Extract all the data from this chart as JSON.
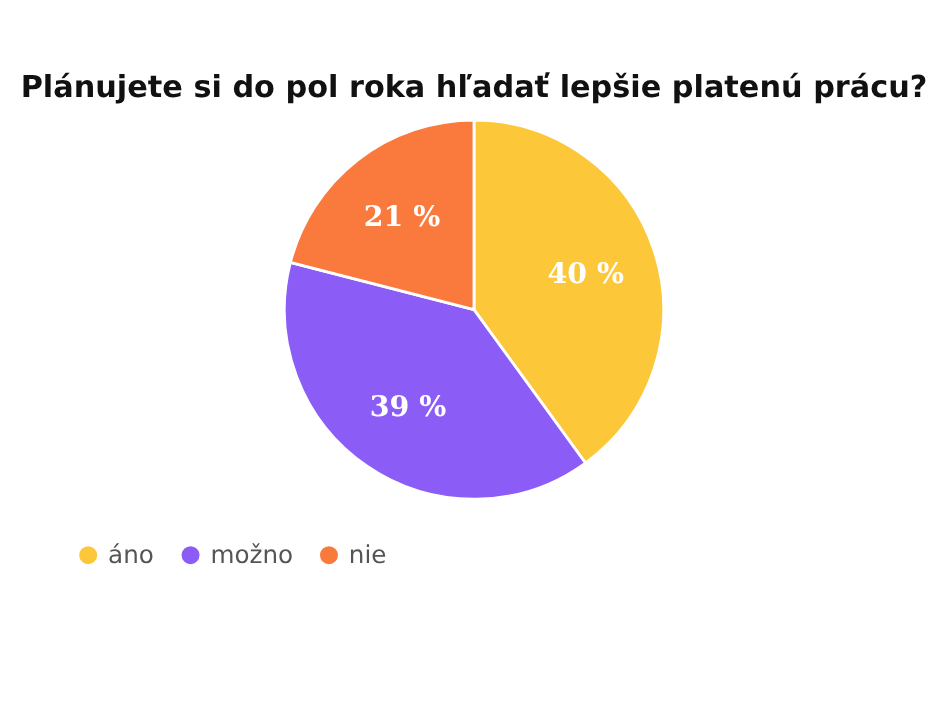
{
  "chart_data": {
    "type": "pie",
    "title": "Plánujete si do pol roka hľadať lepšie platenú prácu?",
    "categories": [
      "áno",
      "možno",
      "nie"
    ],
    "values": [
      40,
      39,
      21
    ],
    "colors": [
      "#fcc83a",
      "#8b5cf6",
      "#f97a3c"
    ],
    "value_labels": [
      "40 %",
      "39 %",
      "21 %"
    ],
    "legend": "bottom"
  }
}
